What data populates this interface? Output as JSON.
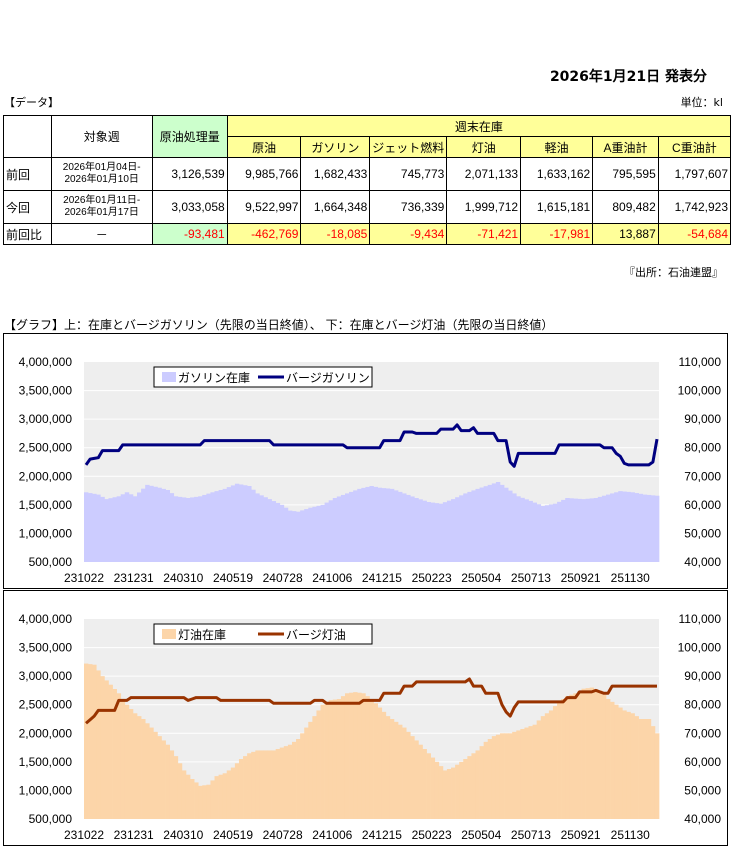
{
  "header": {
    "publish_date": "2026年1月21日  発表分"
  },
  "data_section_label": "【データ】",
  "unit_label": "単位：kl",
  "table": {
    "col_week": "対象週",
    "col_crude_processing": "原油処理量",
    "col_weekend_stock": "週末在庫",
    "stock_headers": [
      "原油",
      "ガソリン",
      "ジェット燃料",
      "灯油",
      "軽油",
      "A重油計",
      "C重油計"
    ],
    "rows": [
      {
        "label": "前回",
        "week": [
          "2026年01月04日-",
          "2026年01月10日"
        ],
        "processing": "3,126,539",
        "stocks": [
          "9,985,766",
          "1,682,433",
          "745,773",
          "2,071,133",
          "1,633,162",
          "795,595",
          "1,797,607"
        ]
      },
      {
        "label": "今回",
        "week": [
          "2026年01月11日-",
          "2026年01月17日"
        ],
        "processing": "3,033,058",
        "stocks": [
          "9,522,997",
          "1,664,348",
          "736,339",
          "1,999,712",
          "1,615,181",
          "809,482",
          "1,742,923"
        ]
      }
    ],
    "diff": {
      "label": "前回比",
      "week": "－",
      "processing": "-93,481",
      "stocks": [
        "-462,769",
        "-18,085",
        "-9,434",
        "-71,421",
        "-17,981",
        "13,887",
        "-54,684"
      ],
      "negative": [
        true,
        true,
        true,
        true,
        true,
        true,
        false,
        true
      ]
    }
  },
  "source": "『出所：石油連盟』",
  "graph_title": "【グラフ】上：在庫とバージガソリン（先限の当日終値）、 下：在庫とバージ灯油（先限の当日終値）",
  "colors": {
    "gas_stock": "#ccccff",
    "gas_barge": "#000080",
    "kero_stock": "#fcd5a9",
    "kero_barge": "#993300",
    "plot_bg": "#eeeeee"
  },
  "chart_data": [
    {
      "type": "bar",
      "ylim": [
        500000,
        4000000
      ],
      "y2lim": [
        40000,
        110000
      ],
      "yticks": [
        "4,000,000",
        "3,500,000",
        "3,000,000",
        "2,500,000",
        "2,000,000",
        "1,500,000",
        "1,000,000",
        "500,000"
      ],
      "y2ticks": [
        "110,000",
        "100,000",
        "90,000",
        "80,000",
        "70,000",
        "60,000",
        "50,000",
        "40,000"
      ],
      "xticks": [
        "231022",
        "231231",
        "240310",
        "240519",
        "240728",
        "241006",
        "241215",
        "250223",
        "250504",
        "250713",
        "250921",
        "251130"
      ],
      "series": [
        {
          "name": "ガソリン在庫",
          "axis": "left",
          "kind": "bar",
          "keypoints": [
            [
              0,
              1720000
            ],
            [
              3,
              1680000
            ],
            [
              5,
              1600000
            ],
            [
              8,
              1650000
            ],
            [
              10,
              1720000
            ],
            [
              12,
              1650000
            ],
            [
              15,
              1850000
            ],
            [
              18,
              1800000
            ],
            [
              20,
              1760000
            ],
            [
              22,
              1650000
            ],
            [
              25,
              1620000
            ],
            [
              28,
              1650000
            ],
            [
              31,
              1720000
            ],
            [
              34,
              1780000
            ],
            [
              37,
              1870000
            ],
            [
              40,
              1830000
            ],
            [
              42,
              1700000
            ],
            [
              45,
              1600000
            ],
            [
              48,
              1500000
            ],
            [
              50,
              1400000
            ],
            [
              52,
              1380000
            ],
            [
              55,
              1450000
            ],
            [
              58,
              1500000
            ],
            [
              61,
              1620000
            ],
            [
              64,
              1700000
            ],
            [
              67,
              1780000
            ],
            [
              70,
              1830000
            ],
            [
              72,
              1800000
            ],
            [
              75,
              1780000
            ],
            [
              78,
              1700000
            ],
            [
              81,
              1620000
            ],
            [
              84,
              1550000
            ],
            [
              87,
              1520000
            ],
            [
              90,
              1600000
            ],
            [
              93,
              1700000
            ],
            [
              96,
              1780000
            ],
            [
              99,
              1850000
            ],
            [
              101,
              1900000
            ],
            [
              103,
              1800000
            ],
            [
              106,
              1650000
            ],
            [
              109,
              1570000
            ],
            [
              112,
              1480000
            ],
            [
              115,
              1520000
            ],
            [
              118,
              1620000
            ],
            [
              122,
              1600000
            ],
            [
              125,
              1620000
            ],
            [
              128,
              1680000
            ],
            [
              131,
              1740000
            ],
            [
              134,
              1720000
            ],
            [
              137,
              1680000
            ],
            [
              140,
              1660000
            ]
          ]
        },
        {
          "name": "バージガソリン",
          "axis": "right",
          "kind": "line",
          "keypoints": [
            [
              0,
              74000
            ],
            [
              1,
              76000
            ],
            [
              3,
              76500
            ],
            [
              4,
              79000
            ],
            [
              8,
              79000
            ],
            [
              9,
              81000
            ],
            [
              28,
              81000
            ],
            [
              29,
              82500
            ],
            [
              45,
              82500
            ],
            [
              46,
              81000
            ],
            [
              63,
              81000
            ],
            [
              64,
              80000
            ],
            [
              72,
              80000
            ],
            [
              73,
              82500
            ],
            [
              77,
              82500
            ],
            [
              78,
              85500
            ],
            [
              80,
              85500
            ],
            [
              81,
              85000
            ],
            [
              86,
              85000
            ],
            [
              87,
              86500
            ],
            [
              90,
              86500
            ],
            [
              91,
              88000
            ],
            [
              92,
              86000
            ],
            [
              94,
              86000
            ],
            [
              95,
              87000
            ],
            [
              96,
              85000
            ],
            [
              100,
              85000
            ],
            [
              101,
              82500
            ],
            [
              103,
              82500
            ],
            [
              104,
              75000
            ],
            [
              105,
              73500
            ],
            [
              106,
              78000
            ],
            [
              115,
              78000
            ],
            [
              116,
              81000
            ],
            [
              126,
              81000
            ],
            [
              127,
              80000
            ],
            [
              129,
              80000
            ],
            [
              130,
              78000
            ],
            [
              131,
              77000
            ],
            [
              132,
              74500
            ],
            [
              133,
              74000
            ],
            [
              138,
              74000
            ],
            [
              139,
              75000
            ],
            [
              140,
              83000
            ]
          ]
        }
      ]
    },
    {
      "type": "bar",
      "ylim": [
        500000,
        4000000
      ],
      "y2lim": [
        40000,
        110000
      ],
      "yticks": [
        "4,000,000",
        "3,500,000",
        "3,000,000",
        "2,500,000",
        "2,000,000",
        "1,500,000",
        "1,000,000",
        "500,000"
      ],
      "y2ticks": [
        "110,000",
        "100,000",
        "90,000",
        "80,000",
        "70,000",
        "60,000",
        "50,000",
        "40,000"
      ],
      "xticks": [
        "231022",
        "231231",
        "240310",
        "240519",
        "240728",
        "241006",
        "241215",
        "250223",
        "250504",
        "250713",
        "250921",
        "251130"
      ],
      "series": [
        {
          "name": "灯油在庫",
          "axis": "left",
          "kind": "bar",
          "keypoints": [
            [
              0,
              3220000
            ],
            [
              2,
              3200000
            ],
            [
              4,
              3000000
            ],
            [
              6,
              2850000
            ],
            [
              8,
              2700000
            ],
            [
              10,
              2500000
            ],
            [
              12,
              2350000
            ],
            [
              14,
              2250000
            ],
            [
              16,
              2100000
            ],
            [
              18,
              1950000
            ],
            [
              20,
              1800000
            ],
            [
              22,
              1600000
            ],
            [
              24,
              1350000
            ],
            [
              26,
              1200000
            ],
            [
              28,
              1080000
            ],
            [
              30,
              1100000
            ],
            [
              32,
              1250000
            ],
            [
              34,
              1300000
            ],
            [
              36,
              1400000
            ],
            [
              38,
              1550000
            ],
            [
              40,
              1650000
            ],
            [
              42,
              1700000
            ],
            [
              44,
              1700000
            ],
            [
              46,
              1700000
            ],
            [
              48,
              1750000
            ],
            [
              50,
              1800000
            ],
            [
              52,
              1900000
            ],
            [
              54,
              2100000
            ],
            [
              56,
              2300000
            ],
            [
              58,
              2500000
            ],
            [
              60,
              2580000
            ],
            [
              62,
              2600000
            ],
            [
              64,
              2700000
            ],
            [
              66,
              2720000
            ],
            [
              68,
              2700000
            ],
            [
              70,
              2600000
            ],
            [
              72,
              2450000
            ],
            [
              74,
              2300000
            ],
            [
              76,
              2200000
            ],
            [
              78,
              2100000
            ],
            [
              80,
              1950000
            ],
            [
              82,
              1800000
            ],
            [
              84,
              1650000
            ],
            [
              86,
              1500000
            ],
            [
              88,
              1350000
            ],
            [
              90,
              1400000
            ],
            [
              92,
              1500000
            ],
            [
              94,
              1600000
            ],
            [
              96,
              1700000
            ],
            [
              98,
              1850000
            ],
            [
              100,
              1950000
            ],
            [
              102,
              2000000
            ],
            [
              104,
              2000000
            ],
            [
              106,
              2050000
            ],
            [
              108,
              2100000
            ],
            [
              110,
              2150000
            ],
            [
              112,
              2300000
            ],
            [
              114,
              2400000
            ],
            [
              116,
              2550000
            ],
            [
              118,
              2650000
            ],
            [
              120,
              2700000
            ],
            [
              122,
              2780000
            ],
            [
              124,
              2800000
            ],
            [
              126,
              2750000
            ],
            [
              128,
              2600000
            ],
            [
              130,
              2500000
            ],
            [
              132,
              2400000
            ],
            [
              134,
              2350000
            ],
            [
              136,
              2250000
            ],
            [
              138,
              2250000
            ],
            [
              140,
              2000000
            ]
          ]
        },
        {
          "name": "バージ灯油",
          "axis": "right",
          "kind": "line",
          "keypoints": [
            [
              0,
              73500
            ],
            [
              2,
              76000
            ],
            [
              3,
              78000
            ],
            [
              7,
              78000
            ],
            [
              8,
              81500
            ],
            [
              10,
              81500
            ],
            [
              11,
              82500
            ],
            [
              24,
              82500
            ],
            [
              25,
              81500
            ],
            [
              27,
              82500
            ],
            [
              32,
              82500
            ],
            [
              33,
              81500
            ],
            [
              45,
              81500
            ],
            [
              46,
              80500
            ],
            [
              55,
              80500
            ],
            [
              56,
              81500
            ],
            [
              58,
              81500
            ],
            [
              59,
              80500
            ],
            [
              67,
              80500
            ],
            [
              68,
              81500
            ],
            [
              72,
              81500
            ],
            [
              73,
              84000
            ],
            [
              77,
              84000
            ],
            [
              78,
              86500
            ],
            [
              80,
              86500
            ],
            [
              81,
              88000
            ],
            [
              93,
              88000
            ],
            [
              94,
              89000
            ],
            [
              95,
              86500
            ],
            [
              97,
              86500
            ],
            [
              98,
              84000
            ],
            [
              101,
              84000
            ],
            [
              102,
              80000
            ],
            [
              103,
              77500
            ],
            [
              104,
              76000
            ],
            [
              105,
              79000
            ],
            [
              106,
              81000
            ],
            [
              117,
              81000
            ],
            [
              118,
              82500
            ],
            [
              120,
              82500
            ],
            [
              121,
              84500
            ],
            [
              124,
              84500
            ],
            [
              125,
              85000
            ],
            [
              127,
              84000
            ],
            [
              128,
              84000
            ],
            [
              129,
              86500
            ],
            [
              140,
              86500
            ]
          ]
        }
      ]
    }
  ]
}
